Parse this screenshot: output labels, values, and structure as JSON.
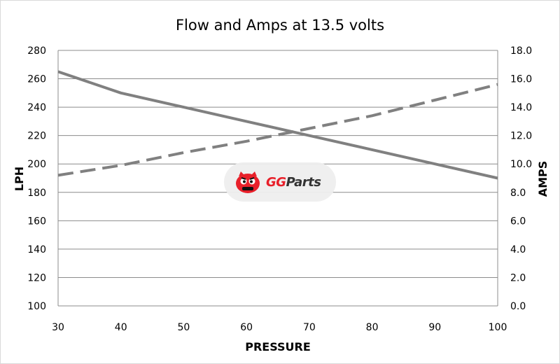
{
  "chart_data": {
    "type": "line",
    "title": "Flow and Amps at 13.5 volts",
    "xlabel": "PRESSURE",
    "ylabel": "LPH",
    "y2label": "AMPS",
    "x": [
      30,
      40,
      50,
      60,
      70,
      80,
      90,
      100
    ],
    "xlim": [
      30,
      100
    ],
    "xticks": [
      "30",
      "40",
      "50",
      "60",
      "70",
      "80",
      "90",
      "100"
    ],
    "ylim": [
      100,
      280
    ],
    "yticks": [
      "100",
      "120",
      "140",
      "160",
      "180",
      "200",
      "220",
      "240",
      "260",
      "280"
    ],
    "y2lim": [
      0,
      18
    ],
    "y2ticks": [
      "0.0",
      "2.0",
      "4.0",
      "6.0",
      "8.0",
      "10.0",
      "12.0",
      "14.0",
      "16.0",
      "18.0"
    ],
    "grid": "horizontal",
    "series": [
      {
        "axis": "left",
        "style": "solid",
        "color": "#808080",
        "values": [
          265,
          250,
          240,
          230,
          220,
          210,
          200,
          190
        ]
      },
      {
        "axis": "right",
        "style": "dashed",
        "color": "#808080",
        "values": [
          9.2,
          9.9,
          10.8,
          11.6,
          12.5,
          13.4,
          14.5,
          15.6
        ]
      }
    ]
  },
  "watermark": {
    "brand_gg": "GG",
    "brand_parts": "Parts",
    "gg_color": "#e8202a",
    "parts_color": "#333333",
    "icon": "cartoon-car-icon"
  }
}
